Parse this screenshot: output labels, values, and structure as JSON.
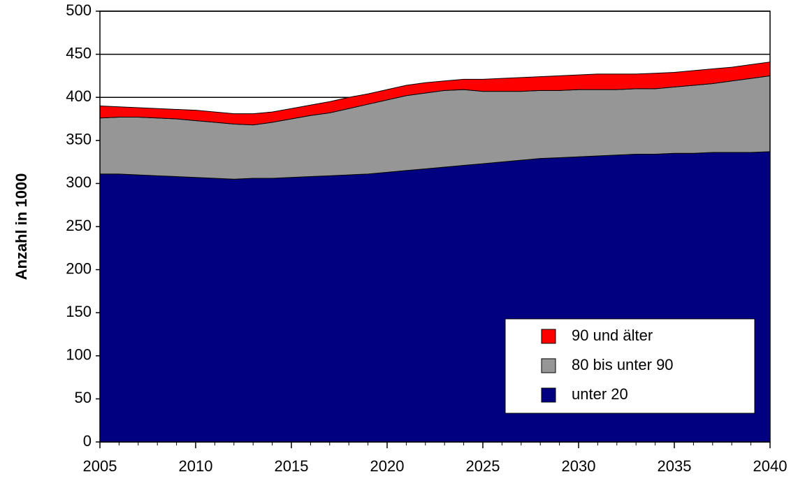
{
  "chart_data": {
    "type": "area",
    "stacked": true,
    "y_label": "Anzahl in 1000",
    "x": [
      2005,
      2006,
      2007,
      2008,
      2009,
      2010,
      2011,
      2012,
      2013,
      2014,
      2015,
      2016,
      2017,
      2018,
      2019,
      2020,
      2021,
      2022,
      2023,
      2024,
      2025,
      2026,
      2027,
      2028,
      2029,
      2030,
      2031,
      2032,
      2033,
      2034,
      2035,
      2036,
      2037,
      2038,
      2039,
      2040
    ],
    "series": [
      {
        "name": "unter 20",
        "color": "#000080",
        "values": [
          311,
          311,
          310,
          309,
          308,
          307,
          306,
          305,
          306,
          306,
          307,
          308,
          309,
          310,
          311,
          313,
          315,
          317,
          319,
          321,
          323,
          325,
          327,
          329,
          330,
          331,
          332,
          333,
          334,
          334,
          335,
          335,
          336,
          336,
          336,
          337
        ]
      },
      {
        "name": "80 bis unter 90",
        "color": "#969696",
        "values": [
          65,
          66,
          67,
          67,
          67,
          66,
          65,
          64,
          62,
          65,
          68,
          71,
          73,
          77,
          81,
          84,
          87,
          88,
          89,
          88,
          84,
          82,
          80,
          79,
          78,
          78,
          77,
          76,
          76,
          76,
          77,
          79,
          80,
          83,
          86,
          88
        ]
      },
      {
        "name": "90 und älter",
        "color": "#ff0000",
        "values": [
          14,
          12,
          11,
          11,
          11,
          12,
          12,
          12,
          13,
          12,
          12,
          12,
          13,
          13,
          12,
          12,
          12,
          12,
          11,
          12,
          14,
          15,
          16,
          16,
          17,
          17,
          18,
          18,
          17,
          18,
          17,
          17,
          17,
          16,
          16,
          16
        ]
      }
    ],
    "xlim": [
      2005,
      2040
    ],
    "xticks": [
      2005,
      2010,
      2015,
      2020,
      2025,
      2030,
      2035,
      2040
    ],
    "ylim": [
      0,
      500
    ],
    "yticks": [
      0,
      50,
      100,
      150,
      200,
      250,
      300,
      350,
      400,
      450,
      500
    ],
    "grid": true,
    "legend": "lower right"
  }
}
